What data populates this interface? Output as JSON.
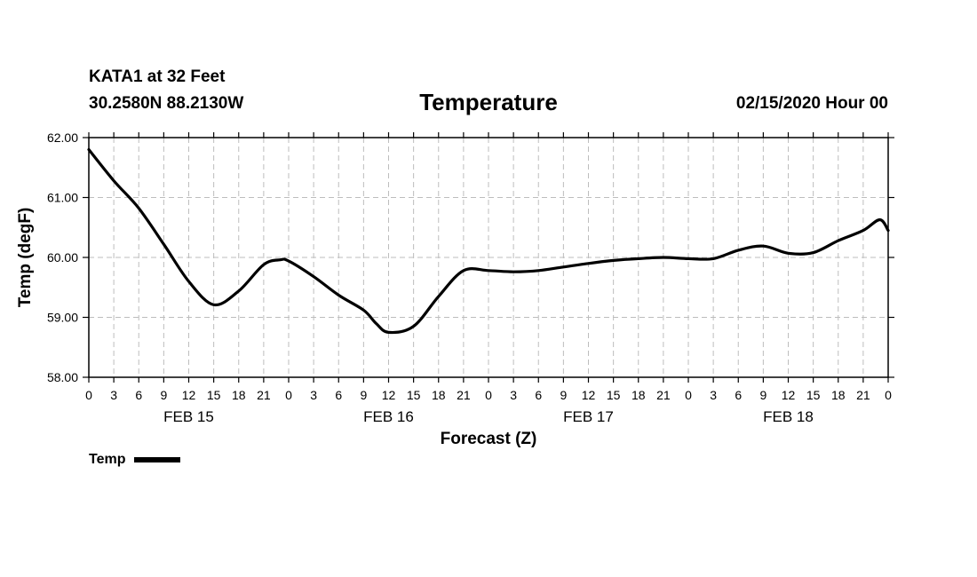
{
  "header": {
    "station": "KATA1 at 32 Feet",
    "coords": "30.2580N 88.2130W",
    "datetime": "02/15/2020 Hour 00"
  },
  "chart_data": {
    "type": "line",
    "title": "Temperature",
    "xlabel": "Forecast (Z)",
    "ylabel": "Temp (degF)",
    "ylim": [
      58,
      62
    ],
    "yticks": [
      "58.00",
      "59.00",
      "60.00",
      "61.00",
      "62.00"
    ],
    "xlim": [
      0,
      96
    ],
    "xtick_hours": [
      0,
      3,
      6,
      9,
      12,
      15,
      18,
      21,
      24,
      27,
      30,
      33,
      36,
      39,
      42,
      45,
      48,
      51,
      54,
      57,
      60,
      63,
      66,
      69,
      72,
      75,
      78,
      81,
      84,
      87,
      90,
      93,
      96
    ],
    "xtick_labels": [
      "0",
      "3",
      "6",
      "9",
      "12",
      "15",
      "18",
      "21",
      "0",
      "3",
      "6",
      "9",
      "12",
      "15",
      "18",
      "21",
      "0",
      "3",
      "6",
      "9",
      "12",
      "15",
      "18",
      "21",
      "0",
      "3",
      "6",
      "9",
      "12",
      "15",
      "18",
      "21",
      "0"
    ],
    "day_labels": [
      {
        "hour": 12,
        "label": "FEB 15"
      },
      {
        "hour": 36,
        "label": "FEB 16"
      },
      {
        "hour": 60,
        "label": "FEB 17"
      },
      {
        "hour": 84,
        "label": "FEB 18"
      }
    ],
    "grid": true,
    "legend": {
      "label": "Temp",
      "placement": "bottom-left"
    },
    "series": [
      {
        "name": "Temp",
        "x": [
          0,
          3,
          6,
          9,
          12,
          15,
          18,
          21,
          23,
          24,
          27,
          30,
          33,
          34.5,
          36,
          39,
          42,
          45,
          48,
          51,
          54,
          57,
          60,
          63,
          66,
          69,
          72,
          75,
          78,
          81,
          84,
          87,
          90,
          93,
          95,
          96
        ],
        "values": [
          61.8,
          61.28,
          60.82,
          60.22,
          59.6,
          59.21,
          59.44,
          59.88,
          59.96,
          59.94,
          59.68,
          59.37,
          59.12,
          58.9,
          58.75,
          58.85,
          59.35,
          59.78,
          59.78,
          59.76,
          59.78,
          59.84,
          59.9,
          59.95,
          59.98,
          60.0,
          59.98,
          59.98,
          60.12,
          60.19,
          60.07,
          60.08,
          60.28,
          60.45,
          60.63,
          60.45
        ]
      }
    ]
  }
}
